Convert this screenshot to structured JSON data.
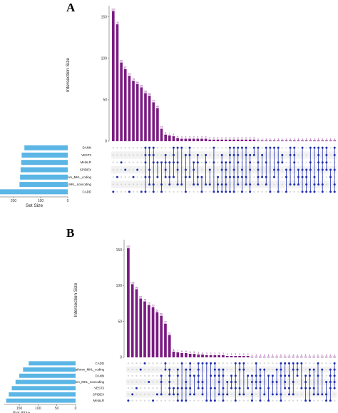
{
  "panels": [
    {
      "letter": "A",
      "chart_data": {
        "type": "bar",
        "ylabel": "Intersection Size",
        "ylim": [
          0,
          160
        ],
        "yticks": [
          0,
          50,
          100,
          150
        ],
        "values": [
          157,
          141,
          95,
          87,
          79,
          73,
          69,
          65,
          58,
          55,
          47,
          40,
          15,
          8,
          7,
          6,
          4,
          3,
          3,
          3,
          3,
          3,
          3,
          3,
          2,
          2,
          2,
          2,
          2,
          2,
          2,
          2,
          2,
          2,
          2,
          2,
          1,
          1,
          1,
          1,
          1,
          1,
          1,
          1,
          1,
          1,
          1,
          1,
          1,
          1,
          1,
          1,
          1,
          1,
          1,
          1
        ],
        "set_size_label": "Set Size",
        "set_size_ticks": [
          200,
          100,
          0
        ],
        "set_size_max": 250,
        "sets": [
          {
            "name": "DANN",
            "size": 160
          },
          {
            "name": "VEST3",
            "size": 170
          },
          {
            "name": "MetaLR",
            "size": 172
          },
          {
            "name": "SPIDEX",
            "size": 174
          },
          {
            "name": "Fathmm_MKL_coding",
            "size": 176
          },
          {
            "name": "Fathmm_MKL_noncoding",
            "size": 178
          },
          {
            "name": "CADD",
            "size": 258
          }
        ],
        "colors": {
          "bars": "#7b1b82",
          "set_bars": "#5bb6e5",
          "dots": "#1f2eb0",
          "empty_dots": "#d9d9d9"
        }
      }
    },
    {
      "letter": "B",
      "chart_data": {
        "type": "bar",
        "ylabel": "Intersection Size",
        "ylim": [
          0,
          160
        ],
        "yticks": [
          0,
          50,
          100,
          150
        ],
        "values": [
          152,
          102,
          95,
          82,
          78,
          73,
          70,
          63,
          58,
          47,
          31,
          8,
          7,
          6,
          6,
          5,
          5,
          4,
          4,
          3,
          3,
          3,
          3,
          3,
          2,
          2,
          2,
          2,
          2,
          2,
          1,
          1,
          1,
          1,
          1,
          1,
          1,
          1,
          1,
          1,
          1,
          1,
          1,
          1,
          1,
          1,
          1,
          1,
          1,
          1,
          1
        ],
        "set_size_label": "Set Size",
        "set_size_ticks": [
          150,
          100,
          50,
          0
        ],
        "set_size_max": 190,
        "sets": [
          {
            "name": "CADD",
            "size": 125
          },
          {
            "name": "Fathmm_MKL_coding",
            "size": 140
          },
          {
            "name": "DANN",
            "size": 150
          },
          {
            "name": "Fathmm_MKL_noncoding",
            "size": 160
          },
          {
            "name": "VEST3",
            "size": 170
          },
          {
            "name": "SPIDEX",
            "size": 178
          },
          {
            "name": "MetaLR",
            "size": 185
          }
        ],
        "colors": {
          "bars": "#7b1b82",
          "set_bars": "#5bb6e5",
          "dots": "#1f2eb0",
          "empty_dots": "#d9d9d9"
        }
      }
    }
  ]
}
